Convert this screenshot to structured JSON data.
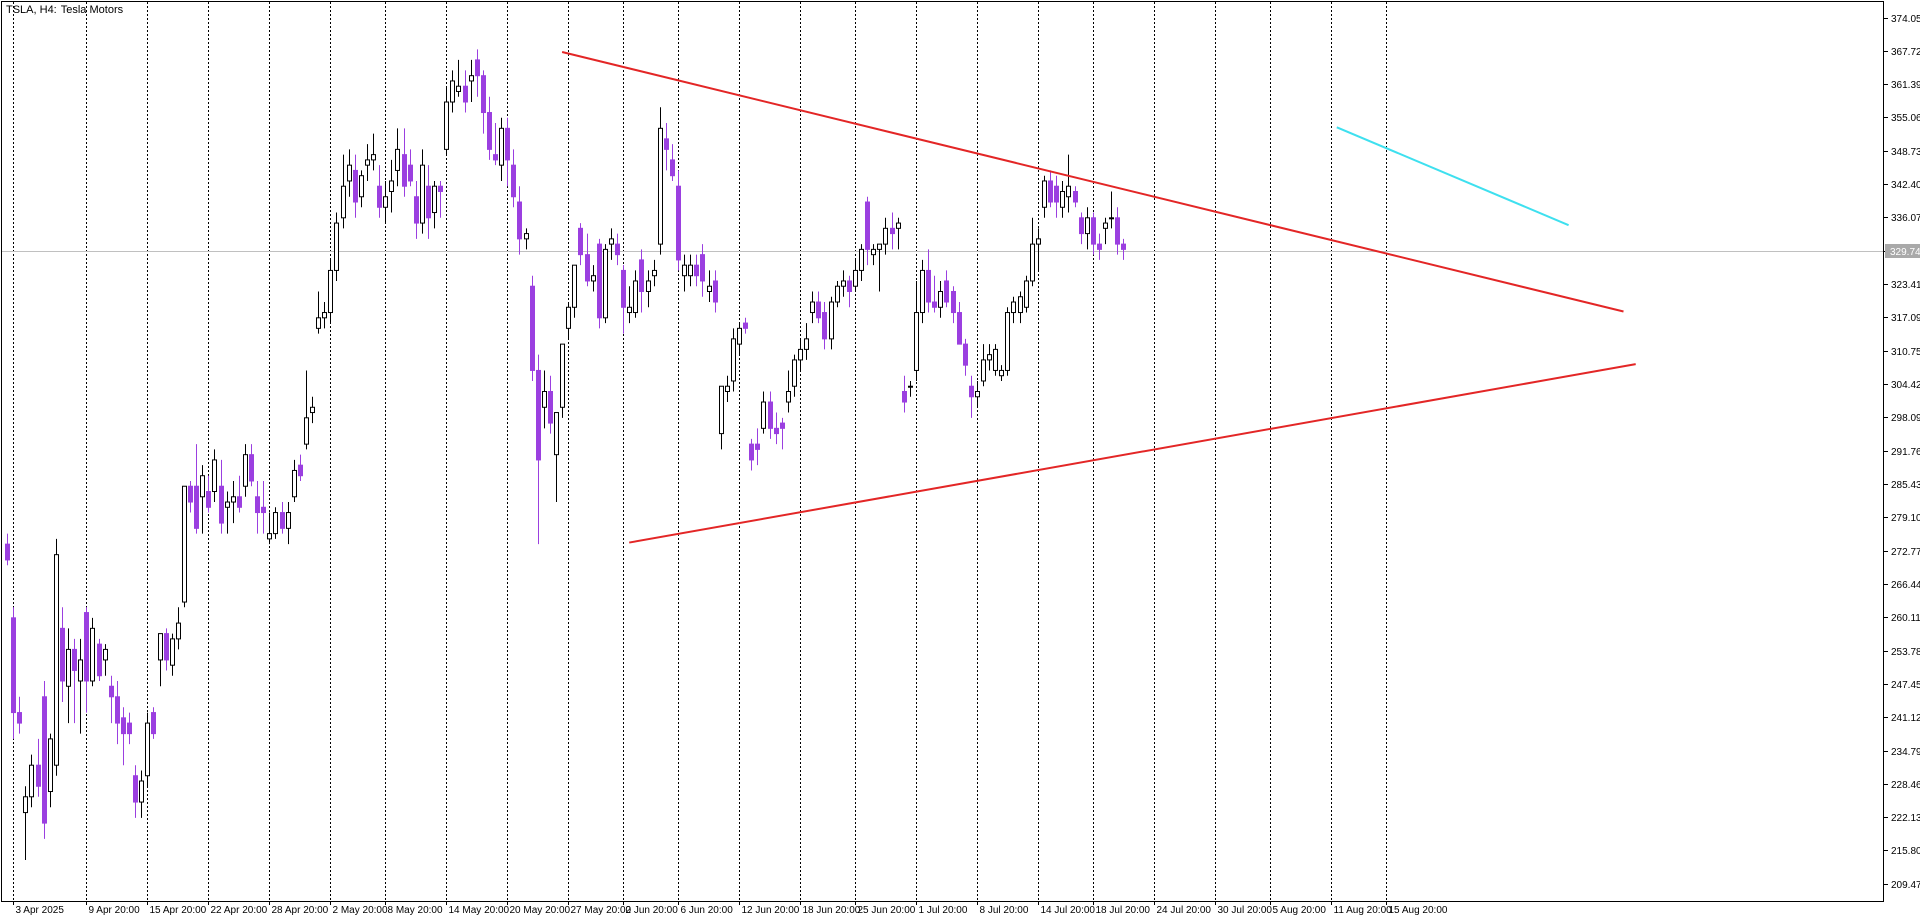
{
  "header": {
    "symbol_label": "TSLA, H4:",
    "name_label": "Tesla Motors"
  },
  "colors": {
    "bull_fill": "#ffffff",
    "bull_stroke": "#000000",
    "bear_fill": "#9b3fe0",
    "bear_stroke": "#9b3fe0",
    "triangle_line": "#e32626",
    "short_trend_line": "#3ee0ef",
    "grid": "#000000",
    "last_price_line": "#c0c0c0",
    "last_price_tag": "#a9a9a9"
  },
  "chart_data": {
    "type": "candlestick",
    "title": "TSLA, H4: Tesla Motors",
    "ylim": [
      206.2,
      377.0
    ],
    "grid": "vertical dashed at time labels",
    "y_ticks": [
      "374.05",
      "367.72",
      "361.39",
      "355.06",
      "348.73",
      "342.40",
      "336.07",
      "329.74",
      "323.41",
      "317.09",
      "310.75",
      "304.42",
      "298.09",
      "291.76",
      "285.43",
      "279.10",
      "272.77",
      "266.44",
      "260.11",
      "253.78",
      "247.45",
      "241.12",
      "234.79",
      "228.46",
      "222.13",
      "215.80",
      "209.47"
    ],
    "x_ticks": [
      {
        "label": "3 Apr 2025",
        "i": 1
      },
      {
        "label": "9 Apr 20:00",
        "i": 13
      },
      {
        "label": "15 Apr 20:00",
        "i": 23
      },
      {
        "label": "22 Apr 20:00",
        "i": 33
      },
      {
        "label": "28 Apr 20:00",
        "i": 43
      },
      {
        "label": "2 May 20:00",
        "i": 53
      },
      {
        "label": "8 May 20:00",
        "i": 62
      },
      {
        "label": "14 May 20:00",
        "i": 72
      },
      {
        "label": "20 May 20:00",
        "i": 82
      },
      {
        "label": "27 May 20:00",
        "i": 92
      },
      {
        "label": "2 Jun 20:00",
        "i": 101
      },
      {
        "label": "6 Jun 20:00",
        "i": 110
      },
      {
        "label": "12 Jun 20:00",
        "i": 120
      },
      {
        "label": "18 Jun 20:00",
        "i": 130
      },
      {
        "label": "25 Jun 20:00",
        "i": 139
      },
      {
        "label": "1 Jul 20:00",
        "i": 149
      },
      {
        "label": "8 Jul 20:00",
        "i": 159
      },
      {
        "label": "14 Jul 20:00",
        "i": 169
      },
      {
        "label": "18 Jul 20:00",
        "i": 178
      },
      {
        "label": "24 Jul 20:00",
        "i": 188
      },
      {
        "label": "30 Jul 20:00",
        "i": 198
      },
      {
        "label": "5 Aug 20:00",
        "i": 207
      },
      {
        "label": "11 Aug 20:00",
        "i": 217
      },
      {
        "label": "15 Aug 20:00",
        "i": 226
      }
    ],
    "last_price": 329.74,
    "last_price_label": "329.74",
    "candles": [
      {
        "o": 274,
        "h": 276,
        "l": 270,
        "c": 271
      },
      {
        "o": 260,
        "h": 262,
        "l": 237,
        "c": 242
      },
      {
        "o": 242,
        "h": 245,
        "l": 238,
        "c": 240
      },
      {
        "o": 223,
        "h": 228,
        "l": 214,
        "c": 226
      },
      {
        "o": 226,
        "h": 234,
        "l": 224,
        "c": 232
      },
      {
        "o": 232,
        "h": 237,
        "l": 226,
        "c": 228
      },
      {
        "o": 245,
        "h": 248,
        "l": 218,
        "c": 221
      },
      {
        "o": 227,
        "h": 238,
        "l": 224,
        "c": 237
      },
      {
        "o": 232,
        "h": 275,
        "l": 230,
        "c": 272
      },
      {
        "o": 258,
        "h": 262,
        "l": 244,
        "c": 248
      },
      {
        "o": 247,
        "h": 258,
        "l": 240,
        "c": 254
      },
      {
        "o": 254,
        "h": 256,
        "l": 240,
        "c": 250
      },
      {
        "o": 248,
        "h": 256,
        "l": 238,
        "c": 252
      },
      {
        "o": 261,
        "h": 262,
        "l": 242,
        "c": 248
      },
      {
        "o": 248,
        "h": 260,
        "l": 247,
        "c": 258
      },
      {
        "o": 255,
        "h": 256,
        "l": 248,
        "c": 249
      },
      {
        "o": 252,
        "h": 255,
        "l": 249,
        "c": 254
      },
      {
        "o": 247,
        "h": 249,
        "l": 240,
        "c": 245
      },
      {
        "o": 245,
        "h": 248,
        "l": 236,
        "c": 240
      },
      {
        "o": 241,
        "h": 243,
        "l": 232,
        "c": 238
      },
      {
        "o": 240,
        "h": 242,
        "l": 236,
        "c": 238
      },
      {
        "o": 230,
        "h": 232,
        "l": 222,
        "c": 225
      },
      {
        "o": 225,
        "h": 231,
        "l": 222,
        "c": 229
      },
      {
        "o": 230,
        "h": 242,
        "l": 228,
        "c": 240
      },
      {
        "o": 242,
        "h": 243,
        "l": 237,
        "c": 238
      },
      {
        "o": 252,
        "h": 257,
        "l": 247,
        "c": 257
      },
      {
        "o": 257,
        "h": 258,
        "l": 250,
        "c": 252
      },
      {
        "o": 251,
        "h": 257,
        "l": 249,
        "c": 256
      },
      {
        "o": 256,
        "h": 262,
        "l": 254,
        "c": 259
      },
      {
        "o": 263,
        "h": 285,
        "l": 262,
        "c": 285
      },
      {
        "o": 285,
        "h": 286,
        "l": 280,
        "c": 282
      },
      {
        "o": 285,
        "h": 293,
        "l": 276,
        "c": 277
      },
      {
        "o": 283,
        "h": 289,
        "l": 276,
        "c": 287
      },
      {
        "o": 284,
        "h": 287,
        "l": 280,
        "c": 281
      },
      {
        "o": 284,
        "h": 292,
        "l": 282,
        "c": 290
      },
      {
        "o": 285,
        "h": 290,
        "l": 276,
        "c": 278
      },
      {
        "o": 281,
        "h": 284,
        "l": 276,
        "c": 282
      },
      {
        "o": 282,
        "h": 286,
        "l": 278,
        "c": 283
      },
      {
        "o": 283,
        "h": 287,
        "l": 280,
        "c": 281
      },
      {
        "o": 285,
        "h": 293,
        "l": 283,
        "c": 291
      },
      {
        "o": 291,
        "h": 293,
        "l": 285,
        "c": 286
      },
      {
        "o": 283,
        "h": 286,
        "l": 276,
        "c": 280
      },
      {
        "o": 281,
        "h": 286,
        "l": 276,
        "c": 280
      },
      {
        "o": 275,
        "h": 280,
        "l": 274,
        "c": 276
      },
      {
        "o": 276,
        "h": 281,
        "l": 275,
        "c": 280
      },
      {
        "o": 280,
        "h": 282,
        "l": 276,
        "c": 277
      },
      {
        "o": 277,
        "h": 282,
        "l": 274,
        "c": 280
      },
      {
        "o": 283,
        "h": 290,
        "l": 282,
        "c": 288
      },
      {
        "o": 289,
        "h": 291,
        "l": 286,
        "c": 287
      },
      {
        "o": 293,
        "h": 307,
        "l": 292,
        "c": 298
      },
      {
        "o": 299,
        "h": 302,
        "l": 297,
        "c": 300
      },
      {
        "o": 315,
        "h": 322,
        "l": 314,
        "c": 317
      },
      {
        "o": 317,
        "h": 320,
        "l": 315,
        "c": 318
      },
      {
        "o": 318,
        "h": 328,
        "l": 316,
        "c": 326
      },
      {
        "o": 326,
        "h": 337,
        "l": 324,
        "c": 335
      },
      {
        "o": 336,
        "h": 348,
        "l": 334,
        "c": 342
      },
      {
        "o": 343,
        "h": 349,
        "l": 340,
        "c": 346
      },
      {
        "o": 345,
        "h": 348,
        "l": 336,
        "c": 339
      },
      {
        "o": 340,
        "h": 345,
        "l": 338,
        "c": 344
      },
      {
        "o": 346,
        "h": 350,
        "l": 343,
        "c": 347
      },
      {
        "o": 347,
        "h": 352,
        "l": 345,
        "c": 348
      },
      {
        "o": 342,
        "h": 346,
        "l": 336,
        "c": 338
      },
      {
        "o": 338,
        "h": 343,
        "l": 335,
        "c": 340
      },
      {
        "o": 341,
        "h": 347,
        "l": 337,
        "c": 343
      },
      {
        "o": 345,
        "h": 353,
        "l": 342,
        "c": 349
      },
      {
        "o": 348,
        "h": 353,
        "l": 340,
        "c": 342
      },
      {
        "o": 346,
        "h": 349,
        "l": 342,
        "c": 343
      },
      {
        "o": 340,
        "h": 343,
        "l": 332,
        "c": 335
      },
      {
        "o": 335,
        "h": 349,
        "l": 333,
        "c": 346
      },
      {
        "o": 342,
        "h": 346,
        "l": 332,
        "c": 336
      },
      {
        "o": 337,
        "h": 343,
        "l": 334,
        "c": 342
      },
      {
        "o": 342,
        "h": 343,
        "l": 336,
        "c": 341
      },
      {
        "o": 349,
        "h": 361,
        "l": 348,
        "c": 358
      },
      {
        "o": 358,
        "h": 364,
        "l": 356,
        "c": 362
      },
      {
        "o": 360,
        "h": 366,
        "l": 359,
        "c": 361
      },
      {
        "o": 361,
        "h": 364,
        "l": 356,
        "c": 358
      },
      {
        "o": 362,
        "h": 366,
        "l": 358,
        "c": 363
      },
      {
        "o": 366,
        "h": 368,
        "l": 359,
        "c": 363
      },
      {
        "o": 363,
        "h": 364,
        "l": 352,
        "c": 356
      },
      {
        "o": 356,
        "h": 359,
        "l": 347,
        "c": 349
      },
      {
        "o": 348,
        "h": 354,
        "l": 346,
        "c": 347
      },
      {
        "o": 346,
        "h": 355,
        "l": 343,
        "c": 353
      },
      {
        "o": 353,
        "h": 355,
        "l": 342,
        "c": 347
      },
      {
        "o": 346,
        "h": 349,
        "l": 338,
        "c": 340
      },
      {
        "o": 339,
        "h": 342,
        "l": 329,
        "c": 332
      },
      {
        "o": 332,
        "h": 334,
        "l": 330,
        "c": 333
      },
      {
        "o": 323,
        "h": 325,
        "l": 305,
        "c": 307
      },
      {
        "o": 307,
        "h": 310,
        "l": 274,
        "c": 290
      },
      {
        "o": 300,
        "h": 307,
        "l": 296,
        "c": 303
      },
      {
        "o": 303,
        "h": 306,
        "l": 295,
        "c": 297
      },
      {
        "o": 291,
        "h": 299,
        "l": 282,
        "c": 299
      },
      {
        "o": 300,
        "h": 312,
        "l": 298,
        "c": 312
      },
      {
        "o": 315,
        "h": 320,
        "l": 313,
        "c": 319
      },
      {
        "o": 319,
        "h": 327,
        "l": 317,
        "c": 327
      },
      {
        "o": 334,
        "h": 335,
        "l": 327,
        "c": 329
      },
      {
        "o": 329,
        "h": 333,
        "l": 323,
        "c": 324
      },
      {
        "o": 324,
        "h": 327,
        "l": 322,
        "c": 325
      },
      {
        "o": 331,
        "h": 332,
        "l": 315,
        "c": 317
      },
      {
        "o": 317,
        "h": 331,
        "l": 316,
        "c": 330
      },
      {
        "o": 331,
        "h": 334,
        "l": 328,
        "c": 332
      },
      {
        "o": 331,
        "h": 333,
        "l": 327,
        "c": 329
      },
      {
        "o": 326,
        "h": 327,
        "l": 314,
        "c": 319
      },
      {
        "o": 318,
        "h": 323,
        "l": 316,
        "c": 319
      },
      {
        "o": 318,
        "h": 326,
        "l": 317,
        "c": 324
      },
      {
        "o": 328,
        "h": 330,
        "l": 318,
        "c": 322
      },
      {
        "o": 322,
        "h": 326,
        "l": 319,
        "c": 324
      },
      {
        "o": 325,
        "h": 328,
        "l": 323,
        "c": 326
      },
      {
        "o": 331,
        "h": 357,
        "l": 329,
        "c": 353
      },
      {
        "o": 351,
        "h": 354,
        "l": 345,
        "c": 349
      },
      {
        "o": 347,
        "h": 350,
        "l": 343,
        "c": 344
      },
      {
        "o": 342,
        "h": 345,
        "l": 326,
        "c": 328
      },
      {
        "o": 325,
        "h": 329,
        "l": 322,
        "c": 327
      },
      {
        "o": 325,
        "h": 329,
        "l": 323,
        "c": 327
      },
      {
        "o": 327,
        "h": 329,
        "l": 323,
        "c": 325
      },
      {
        "o": 329,
        "h": 331,
        "l": 321,
        "c": 324
      },
      {
        "o": 322,
        "h": 326,
        "l": 320,
        "c": 323
      },
      {
        "o": 324,
        "h": 326,
        "l": 318,
        "c": 320
      },
      {
        "o": 295,
        "h": 304,
        "l": 292,
        "c": 304
      },
      {
        "o": 303,
        "h": 306,
        "l": 301,
        "c": 304
      },
      {
        "o": 305,
        "h": 315,
        "l": 303,
        "c": 313
      },
      {
        "o": 312,
        "h": 316,
        "l": 310,
        "c": 315
      },
      {
        "o": 316,
        "h": 317,
        "l": 314,
        "c": 315
      },
      {
        "o": 293,
        "h": 294,
        "l": 288,
        "c": 290
      },
      {
        "o": 293,
        "h": 296,
        "l": 289,
        "c": 292
      },
      {
        "o": 296,
        "h": 303,
        "l": 295,
        "c": 301
      },
      {
        "o": 301,
        "h": 303,
        "l": 294,
        "c": 296
      },
      {
        "o": 296,
        "h": 299,
        "l": 293,
        "c": 295
      },
      {
        "o": 297,
        "h": 298,
        "l": 292,
        "c": 296
      },
      {
        "o": 301,
        "h": 307,
        "l": 299,
        "c": 303
      },
      {
        "o": 304,
        "h": 310,
        "l": 302,
        "c": 309
      },
      {
        "o": 309,
        "h": 313,
        "l": 307,
        "c": 311
      },
      {
        "o": 311,
        "h": 316,
        "l": 309,
        "c": 313
      },
      {
        "o": 318,
        "h": 322,
        "l": 316,
        "c": 320
      },
      {
        "o": 320,
        "h": 322,
        "l": 316,
        "c": 317
      },
      {
        "o": 318,
        "h": 320,
        "l": 311,
        "c": 313
      },
      {
        "o": 313,
        "h": 321,
        "l": 311,
        "c": 320
      },
      {
        "o": 320,
        "h": 324,
        "l": 319,
        "c": 323
      },
      {
        "o": 323,
        "h": 326,
        "l": 321,
        "c": 324
      },
      {
        "o": 324,
        "h": 325,
        "l": 319,
        "c": 322
      },
      {
        "o": 323,
        "h": 328,
        "l": 322,
        "c": 326
      },
      {
        "o": 326,
        "h": 331,
        "l": 324,
        "c": 330
      },
      {
        "o": 339,
        "h": 340,
        "l": 327,
        "c": 330
      },
      {
        "o": 329,
        "h": 331,
        "l": 327,
        "c": 330
      },
      {
        "o": 330,
        "h": 331,
        "l": 322,
        "c": 331
      },
      {
        "o": 331,
        "h": 336,
        "l": 329,
        "c": 334
      },
      {
        "o": 334,
        "h": 337,
        "l": 330,
        "c": 333
      },
      {
        "o": 334,
        "h": 336,
        "l": 330,
        "c": 335
      },
      {
        "o": 303,
        "h": 306,
        "l": 299,
        "c": 301
      },
      {
        "o": 304,
        "h": 305,
        "l": 302,
        "c": 304
      },
      {
        "o": 307,
        "h": 324,
        "l": 305,
        "c": 318
      },
      {
        "o": 318,
        "h": 328,
        "l": 316,
        "c": 326
      },
      {
        "o": 326,
        "h": 330,
        "l": 318,
        "c": 320
      },
      {
        "o": 320,
        "h": 325,
        "l": 318,
        "c": 319
      },
      {
        "o": 319,
        "h": 324,
        "l": 317,
        "c": 322
      },
      {
        "o": 324,
        "h": 326,
        "l": 319,
        "c": 320
      },
      {
        "o": 322,
        "h": 323,
        "l": 316,
        "c": 318
      },
      {
        "o": 318,
        "h": 320,
        "l": 312,
        "c": 312
      },
      {
        "o": 312,
        "h": 313,
        "l": 306,
        "c": 308
      },
      {
        "o": 304,
        "h": 306,
        "l": 298,
        "c": 302
      },
      {
        "o": 302,
        "h": 305,
        "l": 300,
        "c": 303
      },
      {
        "o": 305,
        "h": 312,
        "l": 304,
        "c": 309
      },
      {
        "o": 309,
        "h": 312,
        "l": 307,
        "c": 310
      },
      {
        "o": 307,
        "h": 312,
        "l": 306,
        "c": 311
      },
      {
        "o": 306,
        "h": 308,
        "l": 305,
        "c": 307
      },
      {
        "o": 307,
        "h": 319,
        "l": 306,
        "c": 318
      },
      {
        "o": 318,
        "h": 321,
        "l": 316,
        "c": 320
      },
      {
        "o": 318,
        "h": 322,
        "l": 316,
        "c": 321
      },
      {
        "o": 319,
        "h": 325,
        "l": 318,
        "c": 324
      },
      {
        "o": 324,
        "h": 336,
        "l": 323,
        "c": 331
      },
      {
        "o": 331,
        "h": 334,
        "l": 326,
        "c": 332
      },
      {
        "o": 338,
        "h": 344,
        "l": 336,
        "c": 343
      },
      {
        "o": 343,
        "h": 345,
        "l": 338,
        "c": 339
      },
      {
        "o": 342,
        "h": 344,
        "l": 336,
        "c": 339
      },
      {
        "o": 338,
        "h": 343,
        "l": 336,
        "c": 341
      },
      {
        "o": 340,
        "h": 348,
        "l": 337,
        "c": 342
      },
      {
        "o": 341,
        "h": 342,
        "l": 338,
        "c": 339
      },
      {
        "o": 336,
        "h": 337,
        "l": 331,
        "c": 333
      },
      {
        "o": 333,
        "h": 338,
        "l": 330,
        "c": 336
      },
      {
        "o": 336,
        "h": 337,
        "l": 329,
        "c": 331
      },
      {
        "o": 331,
        "h": 333,
        "l": 328,
        "c": 330
      },
      {
        "o": 334,
        "h": 336,
        "l": 331,
        "c": 335
      },
      {
        "o": 336,
        "h": 341,
        "l": 334,
        "c": 336
      },
      {
        "o": 336,
        "h": 338,
        "l": 329,
        "c": 331
      },
      {
        "o": 331,
        "h": 332,
        "l": 328,
        "c": 330
      }
    ],
    "trendlines": [
      {
        "name": "upper-resistance",
        "color": "#e32626",
        "i1": 91,
        "p1": 367.5,
        "i2": 265,
        "p2": 318.2
      },
      {
        "name": "lower-support",
        "color": "#e32626",
        "i1": 102,
        "p1": 274.3,
        "i2": 267,
        "p2": 308.2
      },
      {
        "name": "short-term-resistance",
        "color": "#3ee0ef",
        "i1": 218,
        "p1": 353.2,
        "i2": 256,
        "p2": 334.6
      }
    ]
  }
}
